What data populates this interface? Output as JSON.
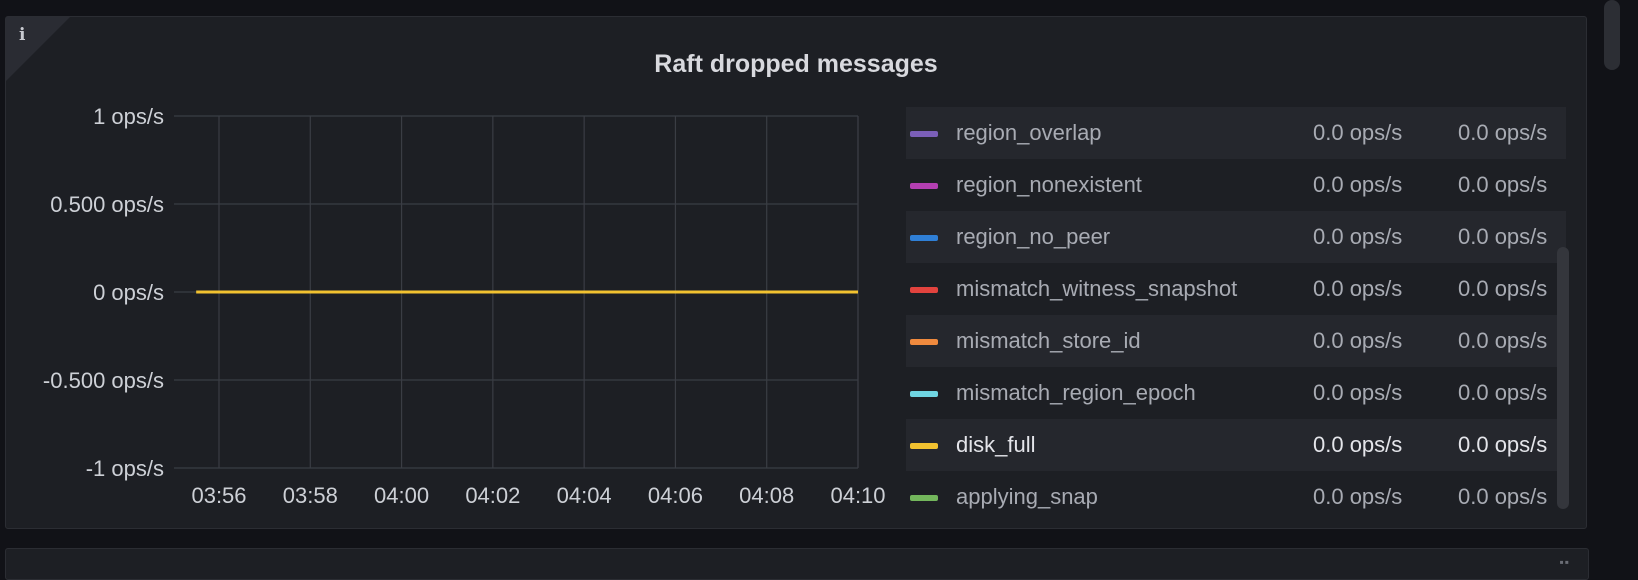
{
  "panel": {
    "title": "Raft dropped messages",
    "info_icon": "i"
  },
  "chart_data": {
    "type": "line",
    "title": "Raft dropped messages",
    "xlabel": "",
    "ylabel": "",
    "ylim": [
      -1,
      1
    ],
    "y_ticks": [
      "1 ops/s",
      "0.500 ops/s",
      "0 ops/s",
      "-0.500 ops/s",
      "-1 ops/s"
    ],
    "y_tick_values": [
      1,
      0.5,
      0,
      -0.5,
      -1
    ],
    "x_ticks": [
      "03:56",
      "03:58",
      "04:00",
      "04:02",
      "04:04",
      "04:06",
      "04:08",
      "04:10"
    ],
    "grid": true,
    "legend_placement": "right",
    "series": [
      {
        "name": "disk_full",
        "color": "#f2c230",
        "x": [
          "03:55:30",
          "04:10"
        ],
        "values": [
          0,
          0
        ]
      }
    ]
  },
  "legend": {
    "items": [
      {
        "name": "region_overlap",
        "color": "#7b5fb8",
        "v1": "0.0 ops/s",
        "v2": "0.0 ops/s",
        "striped": true,
        "highlight": false
      },
      {
        "name": "region_nonexistent",
        "color": "#b43fb2",
        "v1": "0.0 ops/s",
        "v2": "0.0 ops/s",
        "striped": false,
        "highlight": false
      },
      {
        "name": "region_no_peer",
        "color": "#2f7fd6",
        "v1": "0.0 ops/s",
        "v2": "0.0 ops/s",
        "striped": true,
        "highlight": false
      },
      {
        "name": "mismatch_witness_snapshot",
        "color": "#e2433e",
        "v1": "0.0 ops/s",
        "v2": "0.0 ops/s",
        "striped": false,
        "highlight": false
      },
      {
        "name": "mismatch_store_id",
        "color": "#f08a3e",
        "v1": "0.0 ops/s",
        "v2": "0.0 ops/s",
        "striped": true,
        "highlight": false
      },
      {
        "name": "mismatch_region_epoch",
        "color": "#6fd5e2",
        "v1": "0.0 ops/s",
        "v2": "0.0 ops/s",
        "striped": false,
        "highlight": false
      },
      {
        "name": "disk_full",
        "color": "#f2c230",
        "v1": "0.0 ops/s",
        "v2": "0.0 ops/s",
        "striped": true,
        "highlight": true
      },
      {
        "name": "applying_snap",
        "color": "#73b65c",
        "v1": "0.0 ops/s",
        "v2": "0.0 ops/s",
        "striped": false,
        "highlight": false
      }
    ]
  }
}
